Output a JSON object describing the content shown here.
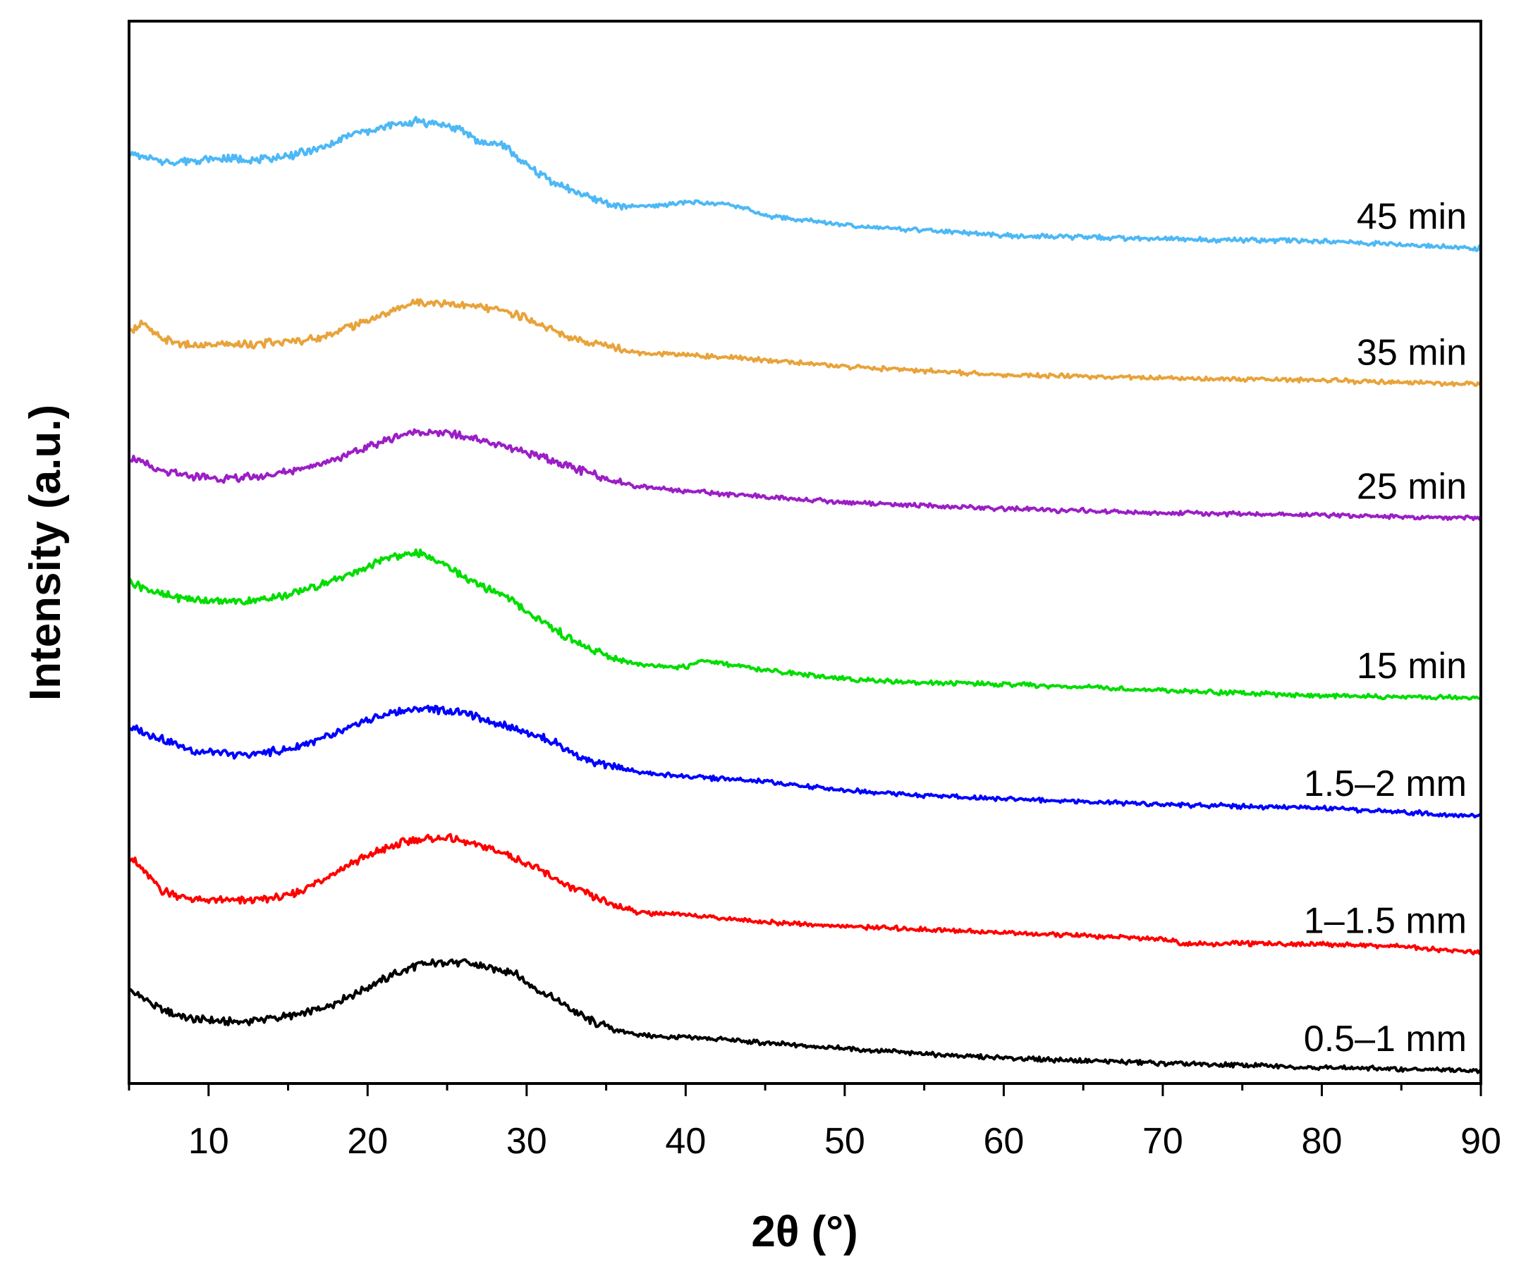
{
  "chart_data": {
    "type": "line",
    "title": "",
    "xlabel": "2θ (°)",
    "ylabel": "Intensity (a.u.)",
    "xlim": [
      5,
      90
    ],
    "ylim": [
      0,
      100
    ],
    "y_tick_labels_shown": false,
    "x_ticks": [
      10,
      20,
      30,
      40,
      50,
      60,
      70,
      80,
      90
    ],
    "x_tick_labels": [
      "10",
      "20",
      "30",
      "40",
      "50",
      "60",
      "70",
      "80",
      "90"
    ],
    "legend": "labels placed at right end of each curve",
    "series": [
      {
        "name": "0.5–1 mm",
        "color": "#000000",
        "x": [
          5,
          7,
          9,
          12,
          15,
          17,
          19,
          21,
          23,
          25,
          26.5,
          28,
          29,
          30,
          32,
          34,
          36,
          38,
          40,
          42,
          45,
          50,
          55,
          60,
          70,
          80,
          90
        ],
        "y": [
          8.8,
          7.0,
          6.0,
          5.8,
          6.3,
          7.0,
          8.3,
          9.8,
          11.1,
          11.5,
          11.3,
          10.7,
          10.6,
          9.5,
          7.7,
          5.9,
          4.9,
          4.4,
          4.3,
          4.2,
          3.8,
          3.3,
          2.8,
          2.4,
          1.9,
          1.5,
          1.2
        ]
      },
      {
        "name": "1–1.5 mm",
        "color": "#ff0000",
        "x": [
          5,
          7,
          9,
          12,
          15,
          16,
          17,
          19,
          21,
          23,
          25,
          27,
          29,
          31,
          33,
          35,
          37,
          40,
          45,
          50,
          55,
          60,
          65,
          70,
          71.5,
          75,
          80,
          85,
          90
        ],
        "y": [
          21.5,
          18.2,
          17.3,
          17.2,
          17.6,
          18.3,
          19.1,
          20.7,
          22.1,
          23.0,
          23.1,
          22.4,
          21.5,
          19.9,
          18.3,
          17.1,
          16.1,
          15.9,
          15.2,
          14.8,
          14.5,
          14.2,
          13.9,
          13.6,
          13.1,
          13.2,
          13.1,
          12.9,
          12.3
        ]
      },
      {
        "name": "1.5–2 mm",
        "color": "#0000ff",
        "x": [
          5,
          7,
          9,
          12,
          15,
          18,
          20,
          22,
          24,
          26,
          28,
          30,
          32,
          34,
          37,
          40,
          45,
          50,
          55,
          60,
          70,
          80,
          90
        ],
        "y": [
          33.6,
          32.5,
          31.3,
          30.9,
          31.4,
          32.9,
          34.2,
          35.1,
          35.3,
          34.9,
          34.0,
          33.1,
          31.9,
          30.3,
          29.3,
          28.9,
          28.4,
          27.6,
          27.1,
          26.8,
          26.3,
          25.9,
          25.2
        ]
      },
      {
        "name": "15 min",
        "color": "#00dd00",
        "x": [
          5,
          7,
          9,
          11,
          13,
          15,
          17,
          19,
          21,
          23,
          25,
          27,
          28.5,
          30,
          32,
          34,
          36,
          38,
          40,
          41,
          45,
          50,
          55,
          60,
          70,
          80,
          90
        ],
        "y": [
          47.3,
          46.0,
          45.6,
          45.3,
          45.5,
          46.0,
          46.9,
          48.0,
          49.3,
          50.0,
          48.8,
          46.8,
          46.1,
          44.5,
          42.5,
          40.8,
          39.8,
          39.3,
          39.2,
          39.8,
          38.9,
          38.1,
          37.7,
          37.6,
          37.0,
          36.5,
          36.3
        ]
      },
      {
        "name": "25 min",
        "color": "#9b1ec6",
        "x": [
          5,
          7,
          9,
          11,
          13,
          15,
          17,
          19,
          21,
          23,
          25,
          27,
          29,
          31,
          33,
          35,
          37,
          40,
          45,
          50,
          55,
          60,
          70,
          80,
          90
        ],
        "y": [
          59.0,
          57.6,
          57.1,
          56.9,
          57.1,
          57.6,
          58.3,
          59.3,
          60.5,
          61.4,
          61.2,
          60.6,
          59.8,
          59.0,
          57.9,
          56.9,
          56.2,
          55.8,
          55.2,
          54.7,
          54.4,
          54.1,
          53.7,
          53.5,
          53.2
        ]
      },
      {
        "name": "35 min",
        "color": "#e8a33a",
        "x": [
          5,
          5.8,
          7,
          9,
          11,
          13,
          15,
          17,
          19,
          21,
          23,
          25,
          27,
          29,
          31,
          33,
          35,
          37,
          40,
          45,
          50,
          55,
          60,
          70,
          80,
          90
        ],
        "y": [
          70.8,
          71.6,
          70.1,
          69.4,
          69.6,
          69.6,
          69.8,
          70.2,
          71.3,
          72.4,
          73.6,
          73.5,
          73.1,
          72.6,
          71.4,
          70.0,
          69.4,
          68.8,
          68.6,
          68.1,
          67.5,
          67.1,
          66.7,
          66.4,
          66.2,
          65.8
        ]
      },
      {
        "name": "45 min",
        "color": "#4db8f5",
        "x": [
          5,
          7,
          9,
          11,
          13,
          15,
          17,
          19,
          21,
          23,
          24.5,
          26,
          27,
          28.5,
          30,
          32,
          34,
          36,
          38,
          40,
          43,
          45,
          50,
          55,
          60,
          70,
          80,
          90
        ],
        "y": [
          87.5,
          86.8,
          86.9,
          87.1,
          86.9,
          87.3,
          88.0,
          89.3,
          90.0,
          90.6,
          90.3,
          89.7,
          88.6,
          88.4,
          86.4,
          84.6,
          83.3,
          82.5,
          82.6,
          83.0,
          82.7,
          81.7,
          80.8,
          80.3,
          79.8,
          79.5,
          79.3,
          78.6
        ]
      }
    ]
  }
}
